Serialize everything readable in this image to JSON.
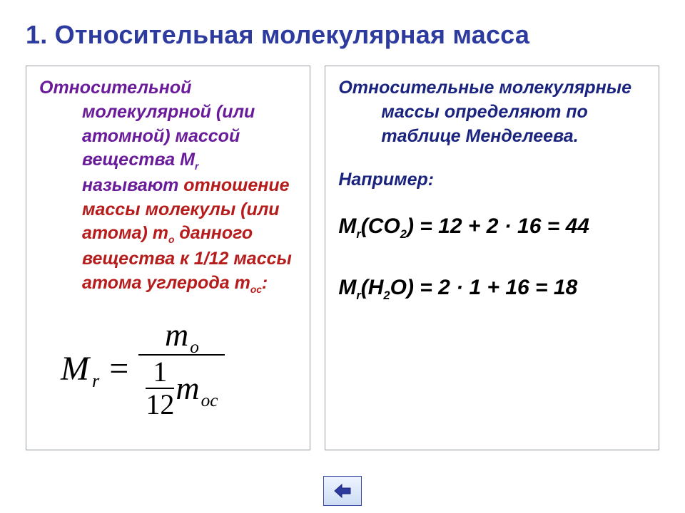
{
  "colors": {
    "title": "#2e3b9e",
    "def_purple": "#6a1b9a",
    "def_red": "#b71c1c",
    "right_blue": "#1a237e",
    "black": "#000000",
    "card_border": "#9aa0a6",
    "nav_border": "#3a4aa8",
    "nav_fill_top": "#eef4ff",
    "nav_fill_bottom": "#cdddf5",
    "nav_arrow": "#2e3b9e",
    "background": "#ffffff"
  },
  "title": "1. Относительная молекулярная масса",
  "left": {
    "purple_text": "Относительной молекулярной (или атомной) массой вещества М",
    "purple_sub": "r",
    "purple_tail": " называют",
    "red_line1": "отношение массы молекулы (или атома) m",
    "red_sub1": "о",
    "red_line2": "данного вещества к 1/12 массы атома углерода m",
    "red_sub2": "ос",
    "red_tail": ":",
    "formula": {
      "lhs_base": "M",
      "lhs_sub": "r",
      "eq": "=",
      "num_base": "m",
      "num_sub": "o",
      "small_num": "1",
      "small_den": "12",
      "den_base": "m",
      "den_sub": "oc"
    }
  },
  "right": {
    "intro": "Относительные молекулярные массы определяют по таблице Менделеева.",
    "example_label": "Например:",
    "eq1": {
      "prefix": "М",
      "psub": "r",
      "open": "(СО",
      "sub": "2",
      "close": ") = 12 + 2 · 16 = 44"
    },
    "eq2": {
      "prefix": "М",
      "psub": "r",
      "open": "(Н",
      "sub": "2",
      "close": "О) = 2 · 1 + 16 = 18"
    }
  },
  "nav": {
    "back_label": "back"
  }
}
